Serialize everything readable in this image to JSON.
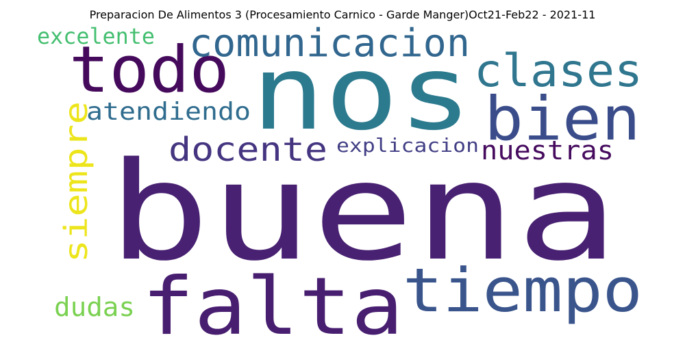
{
  "title": "Preparacion De Alimentos 3 (Procesamiento Carnico - Garde Manger)Oct21-Feb22 - 2021-11",
  "words": [
    {
      "id": "buena",
      "text": "buena",
      "color": "#482172"
    },
    {
      "id": "nos",
      "text": "nos",
      "color": "#2c7a8e"
    },
    {
      "id": "falta",
      "text": "falta",
      "color": "#481e70"
    },
    {
      "id": "tiempo",
      "text": "tiempo",
      "color": "#3a548c"
    },
    {
      "id": "todo",
      "text": "todo",
      "color": "#450a5c"
    },
    {
      "id": "bien",
      "text": "bien",
      "color": "#3a4d8a"
    },
    {
      "id": "clases",
      "text": "clases",
      "color": "#2f768e"
    },
    {
      "id": "comunicacion",
      "text": "comunicacion",
      "color": "#31668e"
    },
    {
      "id": "siempre",
      "text": "siempre",
      "color": "#ede51b"
    },
    {
      "id": "docente",
      "text": "docente",
      "color": "#453580"
    },
    {
      "id": "nuestras",
      "text": "nuestras",
      "color": "#460b5e"
    },
    {
      "id": "atendiendo",
      "text": "atendiendo",
      "color": "#2f6c8e"
    },
    {
      "id": "explicacion",
      "text": "explicacion",
      "color": "#423f85"
    },
    {
      "id": "excelente",
      "text": "excelente",
      "color": "#44bf70"
    },
    {
      "id": "dudas",
      "text": "dudas",
      "color": "#7ad151"
    }
  ]
}
